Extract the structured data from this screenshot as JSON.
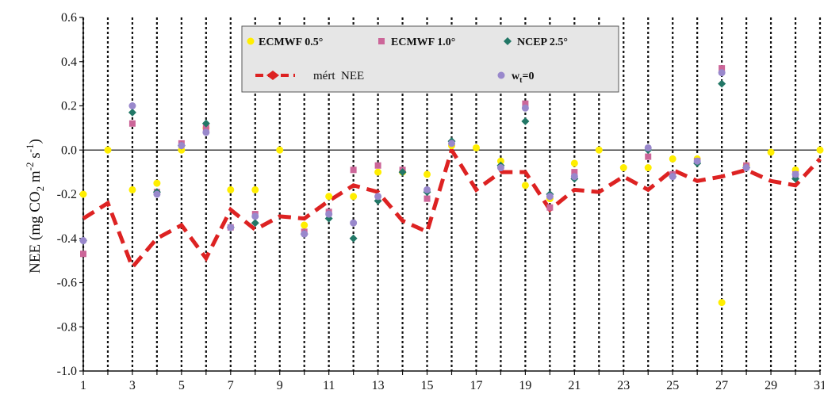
{
  "chart_data": {
    "type": "scatter",
    "title": "",
    "xlabel": "",
    "ylabel": "NEE (mg CO2 m-2 s-1)",
    "ylabel_parts": {
      "a": "NEE (mg CO",
      "sub": "2",
      "b": " m",
      "sup1": "-2",
      "c": " s",
      "sup2": "-1",
      "d": ")"
    },
    "xlim": [
      1,
      31
    ],
    "ylim": [
      -1.0,
      0.6
    ],
    "y_ticks": [
      "0.6",
      "0.4",
      "0.2",
      "0.0",
      "-0.2",
      "-0.4",
      "-0.6",
      "-0.8",
      "-1.0"
    ],
    "y_tick_values": [
      0.6,
      0.4,
      0.2,
      0.0,
      -0.2,
      -0.4,
      -0.6,
      -0.8,
      -1.0
    ],
    "x_ticks": [
      "1",
      "3",
      "5",
      "7",
      "9",
      "11",
      "13",
      "15",
      "17",
      "19",
      "21",
      "23",
      "25",
      "27",
      "29",
      "31"
    ],
    "x_tick_values": [
      1,
      3,
      5,
      7,
      9,
      11,
      13,
      15,
      17,
      19,
      21,
      23,
      25,
      27,
      29,
      31
    ],
    "grid": "vertical dotted lines at every day",
    "legend_position": "top-center",
    "legend": [
      {
        "label": "ECMWF 0.5°",
        "marker": "circle",
        "color": "#ffee00"
      },
      {
        "label": "ECMWF 1.0°",
        "marker": "square",
        "color": "#cc6699"
      },
      {
        "label": "NCEP 2.5°",
        "marker": "diamond",
        "color": "#227766"
      },
      {
        "label": "mért  NEE",
        "marker": "dashed-line",
        "color": "#dd2222"
      },
      {
        "label": "w",
        "label_sub": "t",
        "label_suffix": "=0",
        "marker": "circle",
        "color": "#9988cc"
      }
    ],
    "series": [
      {
        "name": "ECMWF 0.5°",
        "color": "#ffee00",
        "marker": "circle",
        "x": [
          1,
          2,
          3,
          4,
          5,
          6,
          7,
          8,
          9,
          10,
          11,
          12,
          13,
          14,
          15,
          16,
          17,
          18,
          19,
          20,
          21,
          22,
          23,
          24,
          25,
          26,
          27,
          28,
          29,
          30,
          31
        ],
        "y": [
          -0.2,
          0.0,
          -0.18,
          -0.15,
          0.0,
          0.1,
          -0.18,
          -0.18,
          0.0,
          -0.34,
          -0.21,
          -0.21,
          -0.1,
          -0.1,
          -0.11,
          0.02,
          0.01,
          -0.05,
          -0.16,
          -0.22,
          -0.06,
          0.0,
          -0.08,
          -0.08,
          -0.04,
          -0.04,
          -0.69,
          -0.07,
          -0.01,
          -0.09,
          0.0
        ]
      },
      {
        "name": "ECMWF 1.0°",
        "color": "#cc6699",
        "marker": "square",
        "x": [
          1,
          3,
          4,
          5,
          6,
          7,
          8,
          10,
          11,
          12,
          13,
          14,
          15,
          19,
          20,
          21,
          24,
          25,
          26,
          27,
          28,
          30
        ],
        "y": [
          -0.47,
          0.12,
          -0.19,
          0.03,
          0.1,
          -0.35,
          -0.29,
          -0.37,
          -0.28,
          -0.09,
          -0.07,
          -0.09,
          -0.22,
          0.21,
          -0.26,
          -0.1,
          -0.03,
          -0.11,
          -0.05,
          0.37,
          -0.07,
          -0.11
        ]
      },
      {
        "name": "NCEP 2.5°",
        "color": "#227766",
        "marker": "diamond",
        "x": [
          1,
          3,
          4,
          5,
          6,
          7,
          8,
          10,
          11,
          12,
          13,
          14,
          15,
          16,
          18,
          19,
          20,
          21,
          24,
          25,
          26,
          27,
          28,
          30
        ],
        "y": [
          -0.41,
          0.17,
          -0.19,
          0.02,
          0.12,
          -0.35,
          -0.33,
          -0.38,
          -0.31,
          -0.4,
          -0.23,
          -0.1,
          -0.19,
          0.04,
          -0.07,
          0.13,
          -0.2,
          -0.13,
          0.0,
          -0.12,
          -0.06,
          0.3,
          -0.08,
          -0.13
        ]
      },
      {
        "name": "w_t=0",
        "color": "#9988cc",
        "marker": "circle",
        "x": [
          1,
          3,
          4,
          5,
          6,
          7,
          8,
          10,
          11,
          12,
          13,
          15,
          16,
          18,
          19,
          20,
          21,
          24,
          25,
          26,
          27,
          28,
          30
        ],
        "y": [
          -0.41,
          0.2,
          -0.2,
          0.02,
          0.08,
          -0.35,
          -0.3,
          -0.38,
          -0.29,
          -0.33,
          -0.21,
          -0.18,
          0.03,
          -0.08,
          0.19,
          -0.21,
          -0.12,
          0.01,
          -0.12,
          -0.05,
          0.35,
          -0.08,
          -0.11
        ]
      },
      {
        "name": "mért NEE",
        "color": "#dd2222",
        "type": "line",
        "x": [
          1,
          2,
          3,
          4,
          5,
          6,
          7,
          8,
          9,
          10,
          11,
          12,
          13,
          14,
          15,
          16,
          17,
          18,
          19,
          20,
          21,
          22,
          23,
          24,
          25,
          26,
          27,
          28,
          29,
          30,
          31
        ],
        "y": [
          -0.31,
          -0.24,
          -0.53,
          -0.4,
          -0.34,
          -0.49,
          -0.27,
          -0.36,
          -0.3,
          -0.31,
          -0.23,
          -0.16,
          -0.19,
          -0.32,
          -0.37,
          0.0,
          -0.18,
          -0.1,
          -0.1,
          -0.27,
          -0.18,
          -0.19,
          -0.12,
          -0.18,
          -0.09,
          -0.14,
          -0.12,
          -0.09,
          -0.14,
          -0.16,
          -0.04
        ]
      }
    ]
  }
}
